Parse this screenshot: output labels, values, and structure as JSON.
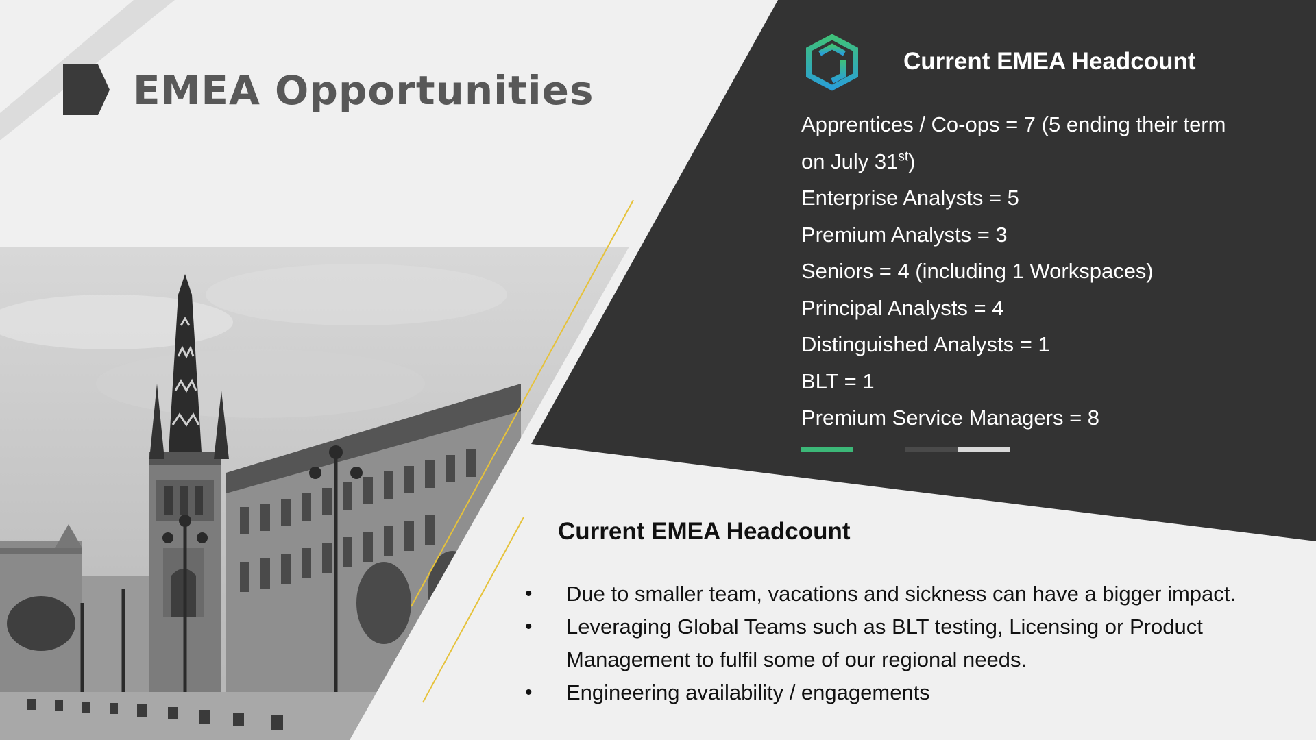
{
  "slide": {
    "title": "EMEA Opportunities"
  },
  "panel": {
    "title": "Current EMEA Headcount",
    "apprentices_prefix": "Apprentices / Co-ops = 7 (5 ending their term on July 31",
    "apprentices_sup": "st",
    "apprentices_suffix": ")",
    "items": [
      "Enterprise Analysts = 5",
      "Premium Analysts = 3",
      "Seniors = 4 (including 1 Workspaces)",
      "Principal Analysts = 4",
      "Distinguished Analysts = 1",
      "BLT = 1",
      "Premium Service Managers = 8"
    ]
  },
  "lower": {
    "title": "Current EMEA Headcount",
    "bullet_glyph": "•",
    "bullets": [
      "Due to smaller team, vacations and sickness can have a bigger impact.",
      "Leveraging Global Teams such as BLT testing, Licensing or Product Management to fulfil some of our regional needs.",
      "Engineering availability / engagements"
    ]
  },
  "colors": {
    "dark_panel": "#333333",
    "accent_green": "#3cb878",
    "accent_gold": "#e6c23a",
    "logo_teal": "#2bb5a8",
    "logo_blue": "#2a9fd6"
  }
}
